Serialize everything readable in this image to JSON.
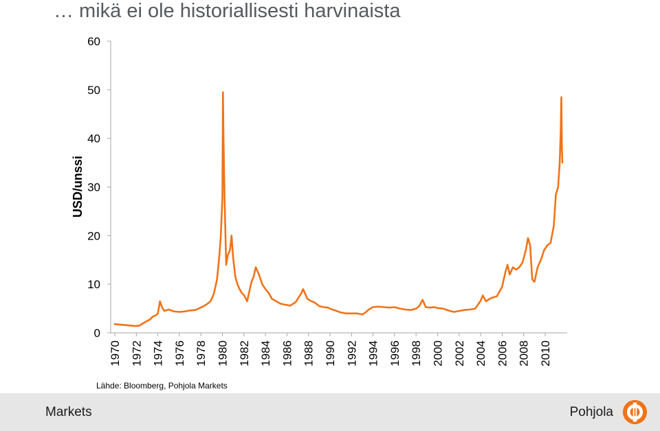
{
  "slide": {
    "title": "… mikä ei ole historiallisesti harvinaista",
    "source": "Lähde: Bloomberg, Pohjola Markets"
  },
  "footer": {
    "left_label": "Markets",
    "right_label": "Pohjola",
    "logo_icon": "pohjola-logo-icon",
    "background": "#e6e6e6"
  },
  "colors": {
    "series": "#f07318",
    "axis": "#a6a6a6",
    "text": "#000000"
  },
  "chart_data": {
    "type": "line",
    "title": "",
    "ylabel": "USD/unssi",
    "xlabel": "",
    "ylim": [
      0,
      60
    ],
    "xlim": [
      1970,
      2011.6
    ],
    "yticks": [
      0,
      10,
      20,
      30,
      40,
      50,
      60
    ],
    "xticks": [
      "1970",
      "1972",
      "1974",
      "1976",
      "1978",
      "1980",
      "1982",
      "1984",
      "1986",
      "1988",
      "1990",
      "1992",
      "1994",
      "1996",
      "1998",
      "2000",
      "2002",
      "2004",
      "2006",
      "2008",
      "2010"
    ],
    "grid": false,
    "legend": "none",
    "series": [
      {
        "color": "#f07318",
        "x": [
          1970.0,
          1971.0,
          1971.9,
          1972.3,
          1972.8,
          1973.3,
          1973.5,
          1973.8,
          1974.0,
          1974.2,
          1974.4,
          1974.6,
          1975.0,
          1975.5,
          1976.0,
          1976.5,
          1977.0,
          1977.5,
          1978.0,
          1978.5,
          1978.9,
          1979.2,
          1979.5,
          1979.7,
          1979.85,
          1980.0,
          1980.05,
          1980.1,
          1980.2,
          1980.35,
          1980.5,
          1980.7,
          1980.85,
          1981.0,
          1981.2,
          1981.4,
          1981.6,
          1981.8,
          1982.0,
          1982.3,
          1982.5,
          1982.7,
          1982.9,
          1983.1,
          1983.4,
          1983.7,
          1984.0,
          1984.3,
          1984.6,
          1985.0,
          1985.4,
          1985.8,
          1986.3,
          1986.8,
          1987.3,
          1987.5,
          1987.9,
          1988.2,
          1988.6,
          1989.0,
          1989.4,
          1989.8,
          1990.2,
          1990.5,
          1991.0,
          1991.5,
          1992.0,
          1992.5,
          1993.0,
          1993.3,
          1993.6,
          1994.0,
          1994.5,
          1995.0,
          1995.5,
          1996.0,
          1996.5,
          1997.0,
          1997.5,
          1998.0,
          1998.3,
          1998.6,
          1998.9,
          1999.3,
          1999.7,
          2000.0,
          2000.5,
          2001.0,
          2001.5,
          2002.0,
          2002.5,
          2003.0,
          2003.5,
          2004.0,
          2004.2,
          2004.5,
          2005.0,
          2005.5,
          2006.0,
          2006.3,
          2006.5,
          2006.7,
          2007.0,
          2007.3,
          2007.6,
          2007.9,
          2008.2,
          2008.4,
          2008.6,
          2008.8,
          2009.0,
          2009.3,
          2009.6,
          2009.9,
          2010.2,
          2010.5,
          2010.8,
          2011.0,
          2011.2,
          2011.35,
          2011.45,
          2011.5,
          2011.55,
          2011.6
        ],
        "y": [
          1.8,
          1.6,
          1.4,
          1.5,
          2.2,
          2.8,
          3.3,
          3.6,
          4.0,
          6.5,
          5.2,
          4.5,
          4.8,
          4.4,
          4.3,
          4.4,
          4.6,
          4.7,
          5.2,
          5.8,
          6.5,
          8.0,
          11.0,
          15.5,
          20.0,
          28.0,
          49.5,
          40.0,
          28.0,
          14.0,
          16.0,
          17.0,
          20.0,
          15.5,
          11.5,
          10.0,
          9.0,
          8.2,
          7.8,
          6.5,
          8.5,
          10.5,
          11.5,
          13.5,
          12.0,
          10.0,
          9.0,
          8.2,
          7.0,
          6.5,
          6.0,
          5.8,
          5.6,
          6.3,
          8.0,
          9.0,
          7.0,
          6.6,
          6.2,
          5.5,
          5.3,
          5.2,
          4.8,
          4.6,
          4.2,
          4.0,
          4.0,
          4.0,
          3.8,
          4.2,
          4.8,
          5.3,
          5.4,
          5.3,
          5.2,
          5.3,
          5.0,
          4.8,
          4.7,
          5.0,
          5.5,
          6.8,
          5.3,
          5.2,
          5.3,
          5.1,
          5.0,
          4.6,
          4.3,
          4.5,
          4.7,
          4.8,
          5.0,
          6.6,
          7.7,
          6.5,
          7.2,
          7.5,
          9.5,
          12.5,
          14.0,
          12.0,
          13.5,
          13.0,
          13.5,
          14.5,
          17.0,
          19.5,
          18.0,
          11.0,
          10.5,
          13.5,
          15.0,
          17.0,
          18.0,
          18.5,
          22.0,
          28.5,
          30.0,
          35.0,
          42.0,
          48.5,
          38.0,
          35.0
        ]
      }
    ]
  }
}
